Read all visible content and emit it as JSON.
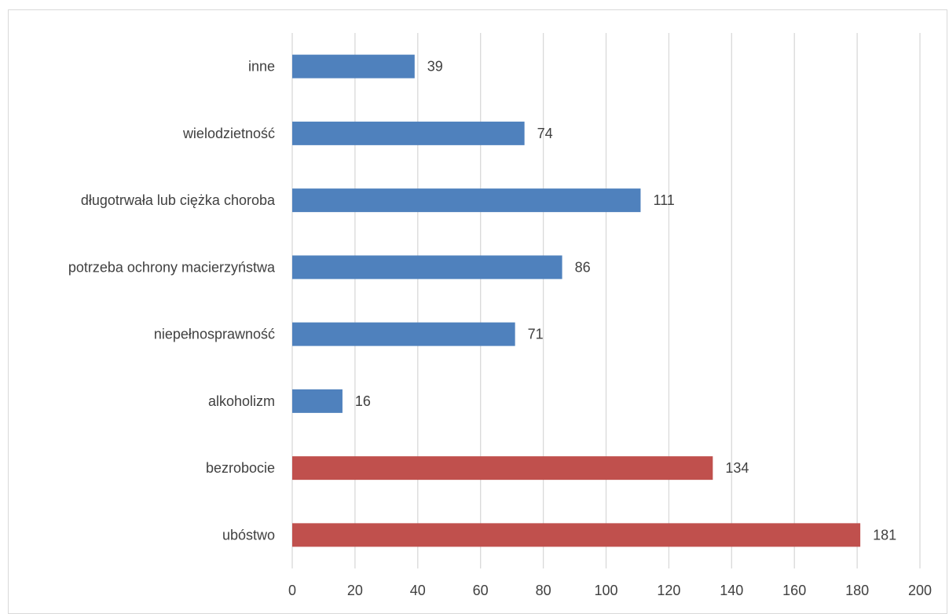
{
  "chart_data": {
    "type": "bar",
    "orientation": "horizontal",
    "title": "",
    "xlabel": "",
    "ylabel": "",
    "categories": [
      "ubóstwo",
      "bezrobocie",
      "alkoholizm",
      "niepełnosprawność",
      "potrzeba ochrony macierzyństwa",
      "długotrwała lub ciężka choroba",
      "wielodzietność",
      "inne"
    ],
    "values": [
      181,
      134,
      16,
      71,
      86,
      111,
      74,
      39
    ],
    "bar_colors": [
      "#C0504D",
      "#C0504D",
      "#4F81BD",
      "#4F81BD",
      "#4F81BD",
      "#4F81BD",
      "#4F81BD",
      "#4F81BD"
    ],
    "xlim": [
      0,
      200
    ],
    "xticks": [
      "0",
      "20",
      "40",
      "60",
      "80",
      "100",
      "120",
      "140",
      "160",
      "180",
      "200"
    ],
    "grid": true,
    "data_labels": true
  },
  "colors": {
    "primary_bar": "#4F81BD",
    "highlight_bar": "#C0504D",
    "gridline": "#d9d9d9",
    "text": "#404040"
  }
}
